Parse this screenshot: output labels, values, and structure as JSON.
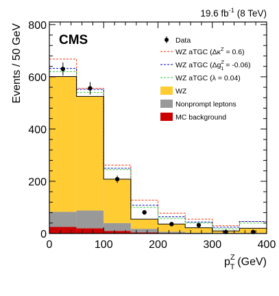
{
  "chart_data": {
    "type": "bar",
    "lumi_label": "19.6 fb",
    "lumi_exponent": "-1",
    "lumi_suffix": "(8 TeV)",
    "experiment_label": "CMS",
    "ylabel": "Events /  50 GeV",
    "xlabel": {
      "base": "p",
      "sup": "Z",
      "sub": "T",
      "unit": "(GeV)"
    },
    "xlim": [
      0,
      400
    ],
    "ylim": [
      0,
      810
    ],
    "x_ticks": [
      0,
      100,
      200,
      300,
      400
    ],
    "y_ticks": [
      0,
      200,
      400,
      600,
      800
    ],
    "bin_edges": [
      0,
      50,
      100,
      150,
      200,
      250,
      300,
      350,
      400
    ],
    "stack": [
      {
        "key": "mc",
        "name": "MC background",
        "color": "#cc0000",
        "values": [
          25,
          20,
          10,
          4,
          2,
          1,
          1,
          1
        ]
      },
      {
        "key": "nonprompt",
        "name": "Nonprompt leptons",
        "color": "#999999",
        "values": [
          58,
          68,
          30,
          14,
          5,
          2,
          1,
          1
        ]
      },
      {
        "key": "wz",
        "name": "WZ",
        "color": "#ffcc33",
        "values": [
          518,
          437,
          168,
          37,
          29,
          19,
          8,
          18
        ]
      }
    ],
    "atgc_lines": [
      {
        "key": "dk",
        "name_pre": "WZ aTGC (Δκ",
        "name_sup": "Z",
        "name_post": " = 0.6)",
        "color": "#ff3300",
        "dash": "3,2",
        "values": [
          668,
          556,
          262,
          128,
          78,
          55,
          30,
          46
        ]
      },
      {
        "key": "dg",
        "name_pre": "WZ aTGC (Δg",
        "name_sup": "Z",
        "name_sub": "1",
        "name_post": " = -0.06)",
        "color": "#0000cc",
        "dash": "3,2",
        "values": [
          632,
          552,
          250,
          108,
          64,
          44,
          24,
          46
        ]
      },
      {
        "key": "lam",
        "name_pre": "WZ aTGC (λ = 0.04)",
        "color": "#33cc33",
        "dash": "3,2",
        "values": [
          620,
          540,
          245,
          100,
          58,
          40,
          18,
          40
        ]
      }
    ],
    "total_line": {
      "color": "#000000",
      "values": [
        601,
        525,
        208,
        55,
        36,
        22,
        10,
        20
      ]
    },
    "data": {
      "name": "Data",
      "x": [
        25,
        75,
        125,
        175,
        225,
        275,
        325,
        375
      ],
      "y": [
        630,
        556,
        208,
        81,
        36,
        32,
        6,
        6
      ],
      "err": [
        25,
        24,
        14,
        9,
        6,
        6,
        2.5,
        2.5
      ]
    }
  }
}
